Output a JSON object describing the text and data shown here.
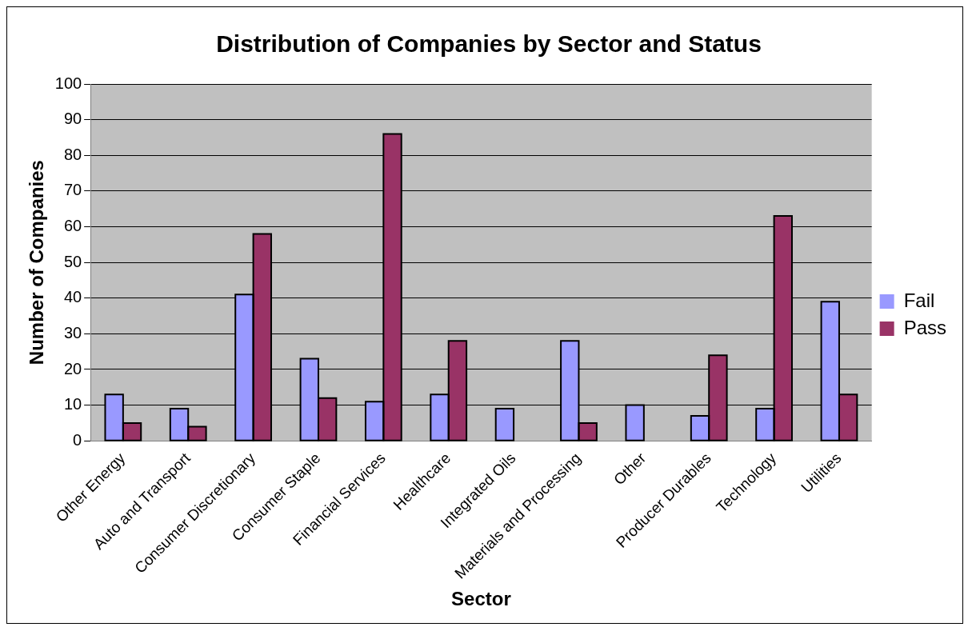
{
  "chart_data": {
    "type": "bar",
    "title": "Distribution of Companies by Sector and Status",
    "xlabel": "Sector",
    "ylabel": "Number of Companies",
    "categories": [
      "Other Energy",
      "Auto and Transport",
      "Consumer Discretionary",
      "Consumer Staple",
      "Financial Services",
      "Healthcare",
      "Integrated Oils",
      "Materials and Processing",
      "Other",
      "Producer Durables",
      "Technology",
      "Utilities"
    ],
    "series": [
      {
        "name": "Fail",
        "color": "#9999ff",
        "values": [
          13,
          9,
          41,
          23,
          11,
          13,
          9,
          28,
          10,
          7,
          9,
          39
        ]
      },
      {
        "name": "Pass",
        "color": "#993366",
        "values": [
          5,
          4,
          58,
          12,
          86,
          28,
          null,
          5,
          null,
          24,
          63,
          13
        ]
      }
    ],
    "ylim": [
      0,
      100
    ],
    "yticks": [
      0,
      10,
      20,
      30,
      40,
      50,
      60,
      70,
      80,
      90,
      100
    ],
    "grid": "y",
    "legend": "right"
  }
}
